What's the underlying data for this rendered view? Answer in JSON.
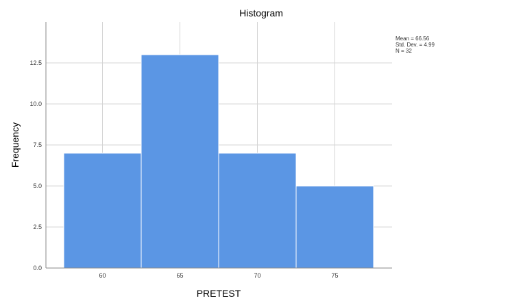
{
  "chart_data": {
    "type": "bar",
    "title": "Histogram",
    "xlabel": "PRETEST",
    "ylabel": "Frequency",
    "categories": [
      "60",
      "65",
      "70",
      "75"
    ],
    "values": [
      7,
      13,
      7,
      5
    ],
    "ylim": [
      0,
      15
    ],
    "yticks": [
      "0.0",
      "2.5",
      "5.0",
      "7.5",
      "10.0",
      "12.5"
    ],
    "grid": true,
    "bar_color": "#5b96e4",
    "stats": {
      "mean": "Mean = 66.56",
      "std_dev": "Std. Dev. = 4.99",
      "n": "N = 32"
    }
  }
}
